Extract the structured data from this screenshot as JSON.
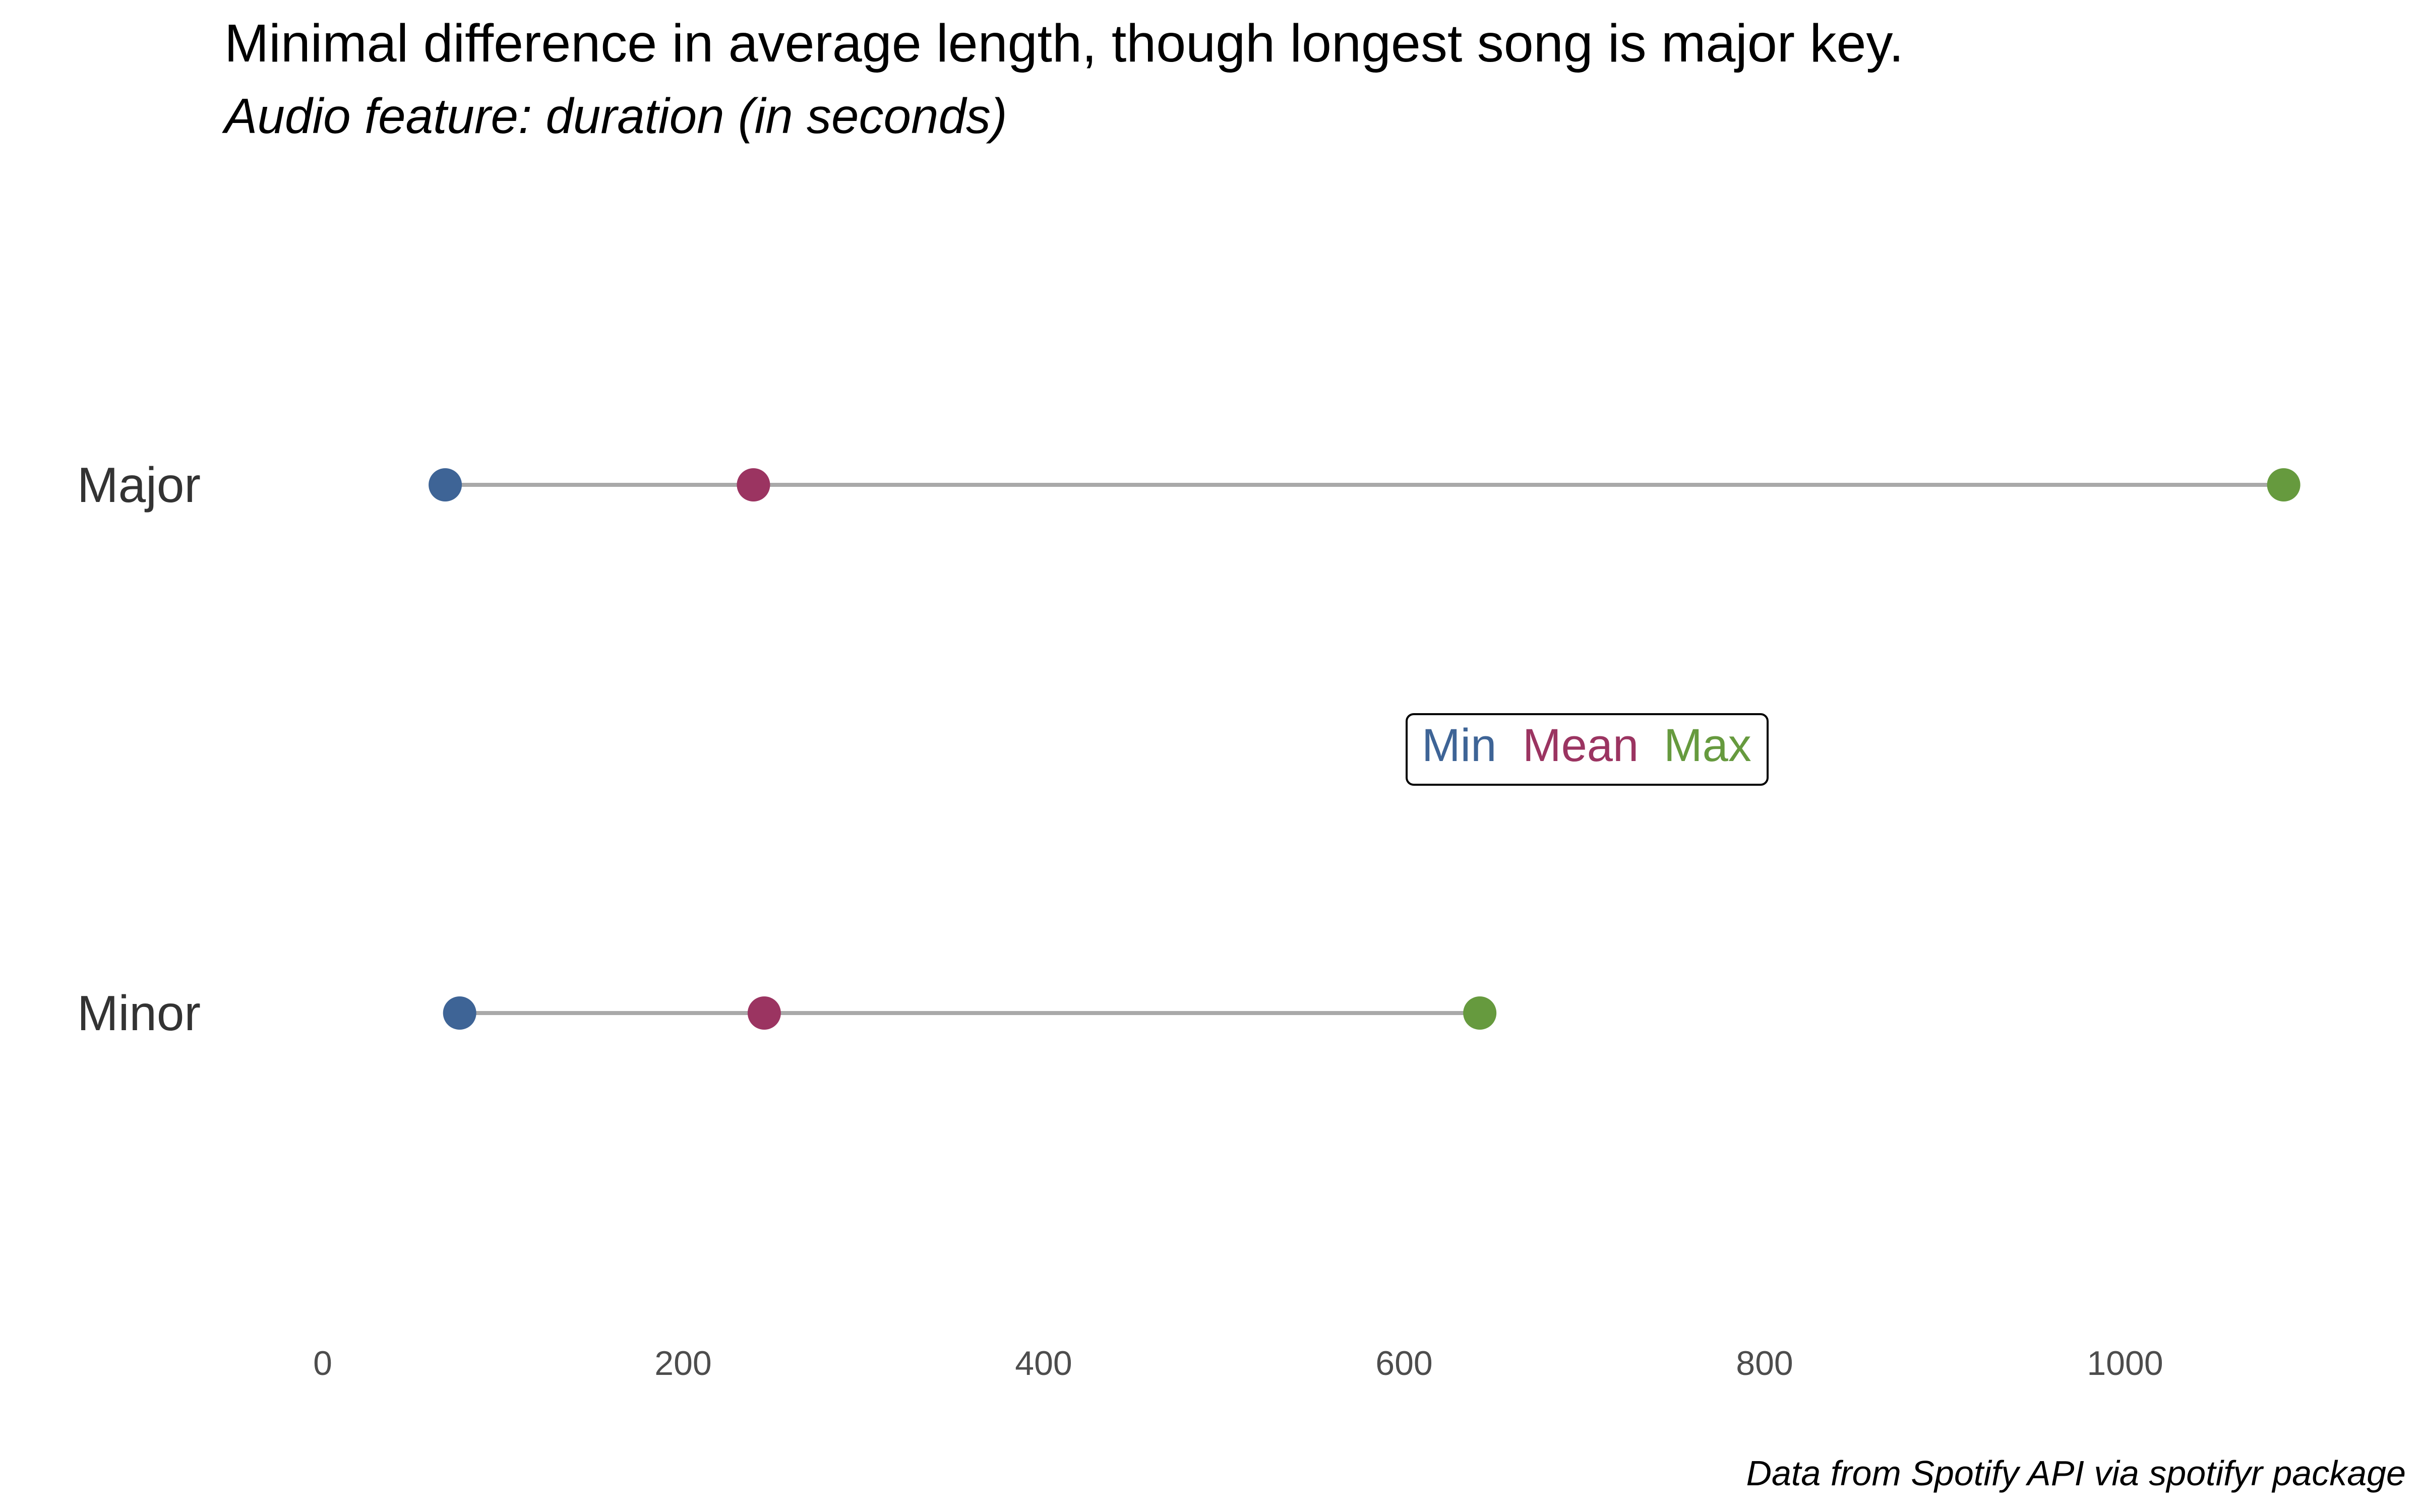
{
  "chart_data": {
    "type": "dumbbell",
    "title": "Minimal difference in average length, though longest song is major key.",
    "subtitle": "Audio feature: duration (in seconds)",
    "caption": "Data from Spotify API via spotifyr package",
    "xlim": [
      0,
      1100
    ],
    "x_ticks": [
      0,
      200,
      400,
      600,
      800,
      1000
    ],
    "grid": false,
    "legend": {
      "placement": "center",
      "entries": [
        {
          "name": "Min",
          "color": "#3e6496"
        },
        {
          "name": "Mean",
          "color": "#9b3461"
        },
        {
          "name": "Max",
          "color": "#669a3e"
        }
      ]
    },
    "categories": [
      "Major",
      "Minor"
    ],
    "rows": [
      {
        "category": "Major",
        "min": 68,
        "mean": 239,
        "max": 1088
      },
      {
        "category": "Minor",
        "min": 76,
        "mean": 245,
        "max": 642
      }
    ]
  }
}
